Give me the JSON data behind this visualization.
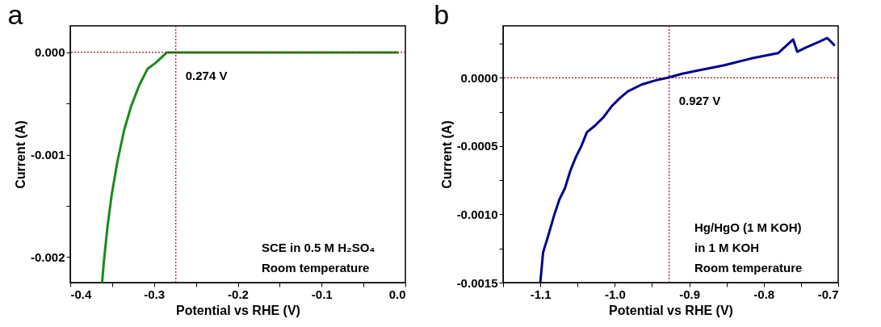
{
  "chart_data": [
    {
      "type": "line",
      "title": "a",
      "xlabel": "Potential vs RHE (V)",
      "ylabel": "Current (A)",
      "xlim": [
        -0.4,
        0.0
      ],
      "ylim": [
        -0.00225,
        0.00026
      ],
      "xticks": [
        -0.4,
        {
          "value": -0.35,
          "label": null
        },
        -0.3,
        {
          "value": -0.25,
          "label": null
        },
        -0.2,
        {
          "value": -0.15,
          "label": null
        },
        -0.1,
        {
          "value": -0.05,
          "label": null
        },
        {
          "value": 0,
          "label": "0.0"
        }
      ],
      "yticks": [
        {
          "value": -0.002,
          "label": "-0.002"
        },
        {
          "value": -0.0015,
          "label": null
        },
        {
          "value": -0.001,
          "label": "-0.001"
        },
        {
          "value": -0.0005,
          "label": null
        },
        {
          "value": 0,
          "label": "0.000"
        }
      ],
      "x": [
        -0.362,
        -0.3598,
        -0.3555,
        -0.3505,
        -0.344,
        -0.3357,
        -0.3275,
        -0.3176,
        -0.3077,
        -0.2978,
        -0.2846,
        -0.2714,
        -0.258,
        -0.199,
        -0.1,
        -0.009
      ],
      "series": [
        {
          "color": "#1a8a1a",
          "values": [
            -0.00225,
            -0.00204,
            -0.0017,
            -0.00139,
            -0.00108,
            -0.00076,
            -0.00053,
            -0.00032,
            -0.00016,
            -0.0001,
            0,
            0,
            0,
            0,
            0,
            0
          ]
        }
      ],
      "ref_lines": [
        {
          "axis": "y",
          "value": 0,
          "color": "#8b1a1a",
          "line_style": "dotted"
        },
        {
          "axis": "x",
          "value": -0.274,
          "label": "0.274 V",
          "color": "#8b1a1a",
          "line_style": "dotted"
        }
      ],
      "annotations": [
        "SCE in 0.5 M H₂SO₄",
        "Room temperature"
      ]
    },
    {
      "type": "line",
      "title": "b",
      "xlabel": "Potential vs RHE (V)",
      "ylabel": "Current (A)",
      "xlim": [
        -1.15,
        -0.7
      ],
      "ylim": [
        -0.0015,
        0.00038
      ],
      "xticks": [
        {
          "value": -1.15,
          "label": null
        },
        -1.1,
        {
          "value": -1.05,
          "label": null
        },
        {
          "value": -1.0,
          "label": "-1.0"
        },
        {
          "value": -0.95,
          "label": null
        },
        -0.9,
        {
          "value": -0.85,
          "label": null
        },
        -0.8,
        {
          "value": -0.75,
          "label": null
        },
        -0.7
      ],
      "yticks": [
        {
          "value": -0.0015,
          "label": "-0.0015"
        },
        {
          "value": -0.00125,
          "label": null
        },
        {
          "value": -0.001,
          "label": "-0.0010"
        },
        {
          "value": -0.00075,
          "label": null
        },
        {
          "value": -0.0005,
          "label": "-0.0005"
        },
        {
          "value": -0.00025,
          "label": null
        },
        {
          "value": 0,
          "label": "0.0000"
        },
        {
          "value": 0.00025,
          "label": null
        }
      ],
      "x": [
        -1.1,
        -1.0963,
        -1.089,
        -1.0816,
        -1.0743,
        -1.067,
        -1.0596,
        -1.0522,
        -1.0449,
        -1.0375,
        -1.0265,
        -1.0154,
        -1.0044,
        -0.9934,
        -0.9824,
        -0.964,
        -0.9456,
        -0.929,
        -0.909,
        -0.8908,
        -0.854,
        -0.8176,
        -0.7807,
        -0.7605,
        -0.755,
        -0.744,
        -0.7146,
        -0.7055
      ],
      "series": [
        {
          "color": "#00008b",
          "values": [
            -0.0015,
            -0.00128,
            -0.00115,
            -0.00101,
            -0.00089,
            -0.00081,
            -0.00068,
            -0.00058,
            -0.0005,
            -0.0004,
            -0.00035,
            -0.00029,
            -0.00021,
            -0.00015,
            -0.0001,
            -5e-05,
            -2e-05,
            0,
            3e-05,
            5e-05,
            9e-05,
            0.00014,
            0.00018,
            0.00028,
            0.00019,
            0.00022,
            0.00029,
            0.00024
          ]
        }
      ],
      "ref_lines": [
        {
          "axis": "y",
          "value": 0,
          "color": "#8b1a1a",
          "line_style": "dotted"
        },
        {
          "axis": "x",
          "value": -0.927,
          "label": "0.927 V",
          "color": "#8b1a1a",
          "line_style": "dotted"
        }
      ],
      "annotations": [
        "Hg/HgO (1 M KOH)",
        "in 1 M KOH",
        "Room temperature"
      ]
    }
  ]
}
